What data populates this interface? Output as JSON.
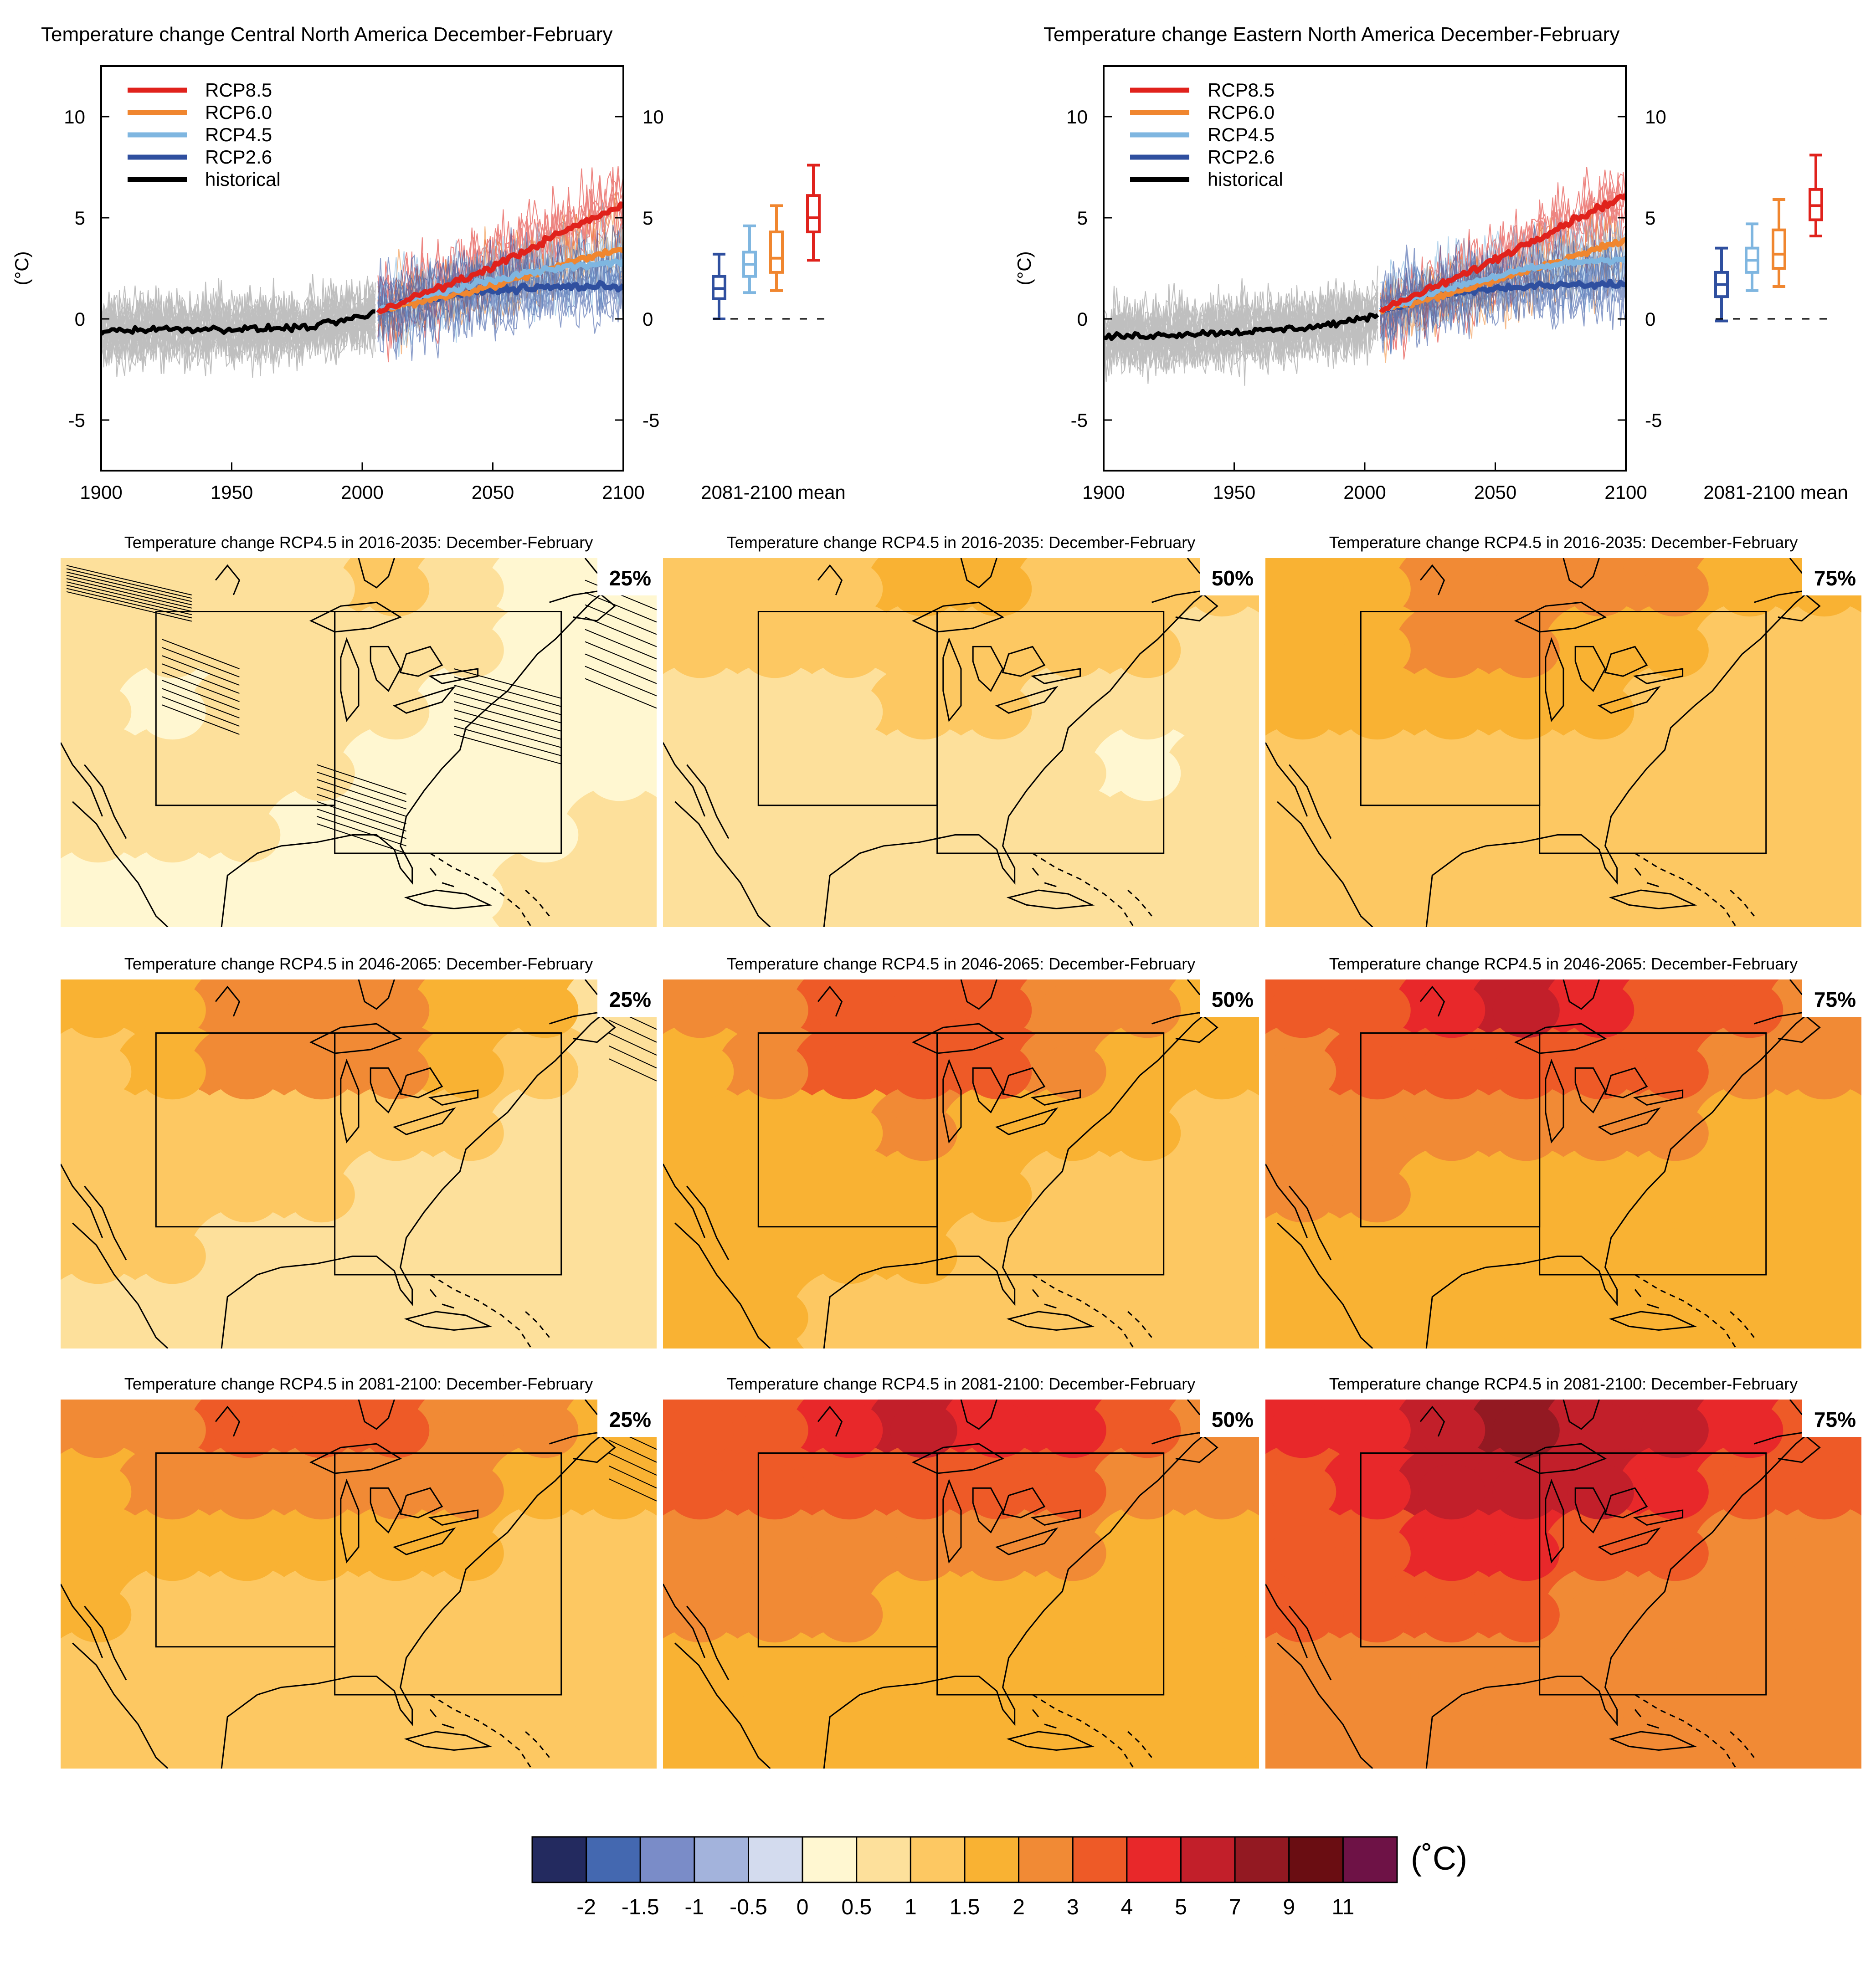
{
  "colors": {
    "rcp85": "#e0221c",
    "rcp60": "#f0862f",
    "rcp45": "#7fb6e0",
    "rcp26": "#2f4f9f",
    "historical": "#000000",
    "ensemble_gray": "#8c8c8c"
  },
  "chart_data": [
    {
      "type": "line",
      "title": "Temperature change Central North America December-February",
      "ylabel": "(°C)",
      "xlim": [
        1900,
        2100
      ],
      "ylim": [
        -7.5,
        12.5
      ],
      "x_ticks": [
        1900,
        1950,
        2000,
        2050,
        2100
      ],
      "y_ticks": [
        -5,
        0,
        5,
        10
      ],
      "legend": {
        "placement": "top-left",
        "entries": [
          "RCP8.5",
          "RCP6.0",
          "RCP4.5",
          "RCP2.6",
          "historical"
        ]
      },
      "series": [
        {
          "name": "historical",
          "x": [
            1900,
            1920,
            1940,
            1960,
            1980,
            2000,
            2005
          ],
          "y": [
            -0.6,
            -0.5,
            -0.5,
            -0.5,
            -0.4,
            0.1,
            0.3
          ]
        },
        {
          "name": "RCP2.6",
          "x": [
            2006,
            2020,
            2040,
            2060,
            2080,
            2100
          ],
          "y": [
            0.4,
            0.9,
            1.3,
            1.5,
            1.6,
            1.6
          ]
        },
        {
          "name": "RCP4.5",
          "x": [
            2006,
            2020,
            2040,
            2060,
            2080,
            2100
          ],
          "y": [
            0.4,
            1.0,
            1.6,
            2.2,
            2.6,
            2.8
          ]
        },
        {
          "name": "RCP6.0",
          "x": [
            2006,
            2020,
            2040,
            2060,
            2080,
            2100
          ],
          "y": [
            0.4,
            0.8,
            1.3,
            2.0,
            2.8,
            3.5
          ]
        },
        {
          "name": "RCP8.5",
          "x": [
            2006,
            2020,
            2040,
            2060,
            2080,
            2100
          ],
          "y": [
            0.4,
            1.1,
            2.0,
            3.2,
            4.5,
            5.6
          ]
        }
      ],
      "boxplot": {
        "label": "2081-2100 mean",
        "boxes": [
          {
            "name": "RCP2.6",
            "min": 0.0,
            "q1": 1.0,
            "median": 1.5,
            "q3": 2.1,
            "max": 3.2
          },
          {
            "name": "RCP4.5",
            "min": 1.3,
            "q1": 2.1,
            "median": 2.7,
            "q3": 3.3,
            "max": 4.6
          },
          {
            "name": "RCP6.0",
            "min": 1.4,
            "q1": 2.3,
            "median": 3.0,
            "q3": 4.3,
            "max": 5.6
          },
          {
            "name": "RCP8.5",
            "min": 2.9,
            "q1": 4.3,
            "median": 5.0,
            "q3": 6.1,
            "max": 7.6
          }
        ]
      }
    },
    {
      "type": "line",
      "title": "Temperature change Eastern North America December-February",
      "ylabel": "(°C)",
      "xlim": [
        1900,
        2100
      ],
      "ylim": [
        -7.5,
        12.5
      ],
      "x_ticks": [
        1900,
        1950,
        2000,
        2050,
        2100
      ],
      "y_ticks": [
        -5,
        0,
        5,
        10
      ],
      "legend": {
        "placement": "top-left",
        "entries": [
          "RCP8.5",
          "RCP6.0",
          "RCP4.5",
          "RCP2.6",
          "historical"
        ]
      },
      "series": [
        {
          "name": "historical",
          "x": [
            1900,
            1920,
            1940,
            1960,
            1980,
            2000,
            2005
          ],
          "y": [
            -0.9,
            -0.8,
            -0.7,
            -0.6,
            -0.4,
            0.0,
            0.3
          ]
        },
        {
          "name": "RCP2.6",
          "x": [
            2006,
            2020,
            2040,
            2060,
            2080,
            2100
          ],
          "y": [
            0.4,
            1.0,
            1.4,
            1.6,
            1.7,
            1.7
          ]
        },
        {
          "name": "RCP4.5",
          "x": [
            2006,
            2020,
            2040,
            2060,
            2080,
            2100
          ],
          "y": [
            0.4,
            1.1,
            1.8,
            2.4,
            2.8,
            3.0
          ]
        },
        {
          "name": "RCP6.0",
          "x": [
            2006,
            2020,
            2040,
            2060,
            2080,
            2100
          ],
          "y": [
            0.4,
            0.9,
            1.5,
            2.3,
            3.1,
            3.9
          ]
        },
        {
          "name": "RCP8.5",
          "x": [
            2006,
            2020,
            2040,
            2060,
            2080,
            2100
          ],
          "y": [
            0.4,
            1.2,
            2.3,
            3.6,
            4.9,
            6.1
          ]
        }
      ],
      "boxplot": {
        "label": "2081-2100 mean",
        "boxes": [
          {
            "name": "RCP2.6",
            "min": -0.1,
            "q1": 1.1,
            "median": 1.7,
            "q3": 2.3,
            "max": 3.5
          },
          {
            "name": "RCP4.5",
            "min": 1.4,
            "q1": 2.3,
            "median": 2.9,
            "q3": 3.5,
            "max": 4.7
          },
          {
            "name": "RCP6.0",
            "min": 1.6,
            "q1": 2.5,
            "median": 3.2,
            "q3": 4.4,
            "max": 5.9
          },
          {
            "name": "RCP8.5",
            "min": 4.1,
            "q1": 4.9,
            "median": 5.6,
            "q3": 6.4,
            "max": 8.1
          }
        ]
      }
    },
    {
      "type": "heatmap",
      "subplots": [
        {
          "title": "Temperature change RCP4.5 in 2016-2035: December-February",
          "percentile": "25%"
        },
        {
          "title": "Temperature change RCP4.5 in 2016-2035: December-February",
          "percentile": "50%"
        },
        {
          "title": "Temperature change RCP4.5 in 2016-2035: December-February",
          "percentile": "75%"
        },
        {
          "title": "Temperature change RCP4.5 in 2046-2065: December-February",
          "percentile": "25%"
        },
        {
          "title": "Temperature change RCP4.5 in 2046-2065: December-February",
          "percentile": "50%"
        },
        {
          "title": "Temperature change RCP4.5 in 2046-2065: December-February",
          "percentile": "75%"
        },
        {
          "title": "Temperature change RCP4.5 in 2081-2100: December-February",
          "percentile": "25%"
        },
        {
          "title": "Temperature change RCP4.5 in 2081-2100: December-February",
          "percentile": "50%"
        },
        {
          "title": "Temperature change RCP4.5 in 2081-2100: December-February",
          "percentile": "75%"
        }
      ],
      "colorbar": {
        "unit": "(˚C)",
        "tick_labels": [
          "-2",
          "-1.5",
          "-1",
          "-0.5",
          "0",
          "0.5",
          "1",
          "1.5",
          "2",
          "3",
          "4",
          "5",
          "7",
          "9",
          "11"
        ],
        "colors": [
          "#232a5f",
          "#4468b0",
          "#7a8cc8",
          "#a3b3dc",
          "#d3dbee",
          "#fff7d1",
          "#fde09b",
          "#fdc862",
          "#f9b233",
          "#f18a35",
          "#ee5a27",
          "#e8282a",
          "#c21f2a",
          "#931922",
          "#6a0d12",
          "#6e1246"
        ]
      },
      "panel_levels": [
        [
          [
            6,
            6,
            6,
            6,
            7,
            6,
            5,
            5
          ],
          [
            6,
            6,
            6,
            6,
            6,
            6,
            5,
            5
          ],
          [
            6,
            5,
            6,
            6,
            6,
            5,
            5,
            5
          ],
          [
            6,
            6,
            6,
            6,
            5,
            5,
            5,
            5
          ],
          [
            6,
            6,
            6,
            5,
            5,
            5,
            5,
            6
          ],
          [
            5,
            5,
            5,
            5,
            5,
            5,
            6,
            6
          ]
        ],
        [
          [
            7,
            7,
            7,
            8,
            8,
            7,
            7,
            7
          ],
          [
            7,
            7,
            7,
            7,
            7,
            7,
            7,
            6
          ],
          [
            6,
            6,
            6,
            7,
            7,
            6,
            6,
            6
          ],
          [
            6,
            6,
            6,
            6,
            6,
            6,
            5,
            6
          ],
          [
            6,
            6,
            6,
            6,
            6,
            6,
            6,
            6
          ],
          [
            6,
            6,
            6,
            6,
            6,
            6,
            6,
            6
          ]
        ],
        [
          [
            8,
            8,
            9,
            9,
            9,
            9,
            8,
            8
          ],
          [
            8,
            8,
            9,
            9,
            8,
            8,
            7,
            7
          ],
          [
            8,
            8,
            8,
            8,
            8,
            7,
            7,
            7
          ],
          [
            7,
            7,
            7,
            7,
            7,
            7,
            7,
            7
          ],
          [
            7,
            7,
            7,
            7,
            7,
            7,
            7,
            7
          ],
          [
            7,
            7,
            7,
            7,
            7,
            7,
            7,
            7
          ]
        ],
        [
          [
            8,
            8,
            9,
            9,
            9,
            8,
            8,
            6
          ],
          [
            7,
            8,
            9,
            9,
            9,
            8,
            7,
            6
          ],
          [
            7,
            7,
            7,
            7,
            7,
            7,
            6,
            6
          ],
          [
            7,
            7,
            7,
            7,
            6,
            6,
            6,
            6
          ],
          [
            7,
            7,
            6,
            6,
            6,
            6,
            6,
            6
          ],
          [
            6,
            6,
            6,
            6,
            6,
            6,
            6,
            6
          ]
        ],
        [
          [
            9,
            9,
            10,
            10,
            10,
            9,
            9,
            8
          ],
          [
            8,
            9,
            10,
            10,
            10,
            9,
            8,
            8
          ],
          [
            8,
            8,
            8,
            9,
            8,
            8,
            8,
            7
          ],
          [
            8,
            8,
            8,
            8,
            8,
            7,
            7,
            7
          ],
          [
            8,
            8,
            8,
            8,
            7,
            7,
            7,
            7
          ],
          [
            8,
            8,
            7,
            7,
            7,
            7,
            7,
            7
          ]
        ],
        [
          [
            10,
            10,
            11,
            12,
            11,
            10,
            10,
            9
          ],
          [
            9,
            10,
            10,
            10,
            10,
            10,
            9,
            9
          ],
          [
            9,
            9,
            9,
            9,
            9,
            9,
            8,
            8
          ],
          [
            9,
            9,
            8,
            8,
            8,
            8,
            8,
            8
          ],
          [
            8,
            8,
            8,
            8,
            8,
            8,
            8,
            8
          ],
          [
            8,
            8,
            8,
            8,
            8,
            8,
            8,
            8
          ]
        ],
        [
          [
            9,
            9,
            10,
            10,
            10,
            9,
            9,
            8
          ],
          [
            8,
            9,
            9,
            9,
            9,
            9,
            8,
            8
          ],
          [
            8,
            8,
            8,
            8,
            8,
            8,
            7,
            7
          ],
          [
            8,
            7,
            7,
            7,
            7,
            7,
            7,
            7
          ],
          [
            7,
            7,
            7,
            7,
            7,
            7,
            7,
            7
          ],
          [
            7,
            7,
            7,
            7,
            7,
            7,
            7,
            7
          ]
        ],
        [
          [
            10,
            10,
            11,
            12,
            11,
            11,
            10,
            9
          ],
          [
            10,
            10,
            10,
            10,
            10,
            10,
            9,
            9
          ],
          [
            9,
            9,
            9,
            9,
            9,
            9,
            8,
            8
          ],
          [
            9,
            9,
            9,
            8,
            8,
            8,
            8,
            8
          ],
          [
            8,
            8,
            8,
            8,
            8,
            8,
            8,
            8
          ],
          [
            8,
            8,
            8,
            8,
            8,
            8,
            8,
            8
          ]
        ],
        [
          [
            11,
            11,
            12,
            13,
            12,
            12,
            11,
            10
          ],
          [
            10,
            11,
            12,
            12,
            12,
            11,
            10,
            10
          ],
          [
            10,
            10,
            11,
            11,
            10,
            10,
            9,
            9
          ],
          [
            10,
            10,
            10,
            10,
            9,
            9,
            9,
            9
          ],
          [
            9,
            9,
            9,
            9,
            9,
            9,
            9,
            9
          ],
          [
            9,
            9,
            9,
            9,
            9,
            9,
            9,
            9
          ]
        ]
      ]
    }
  ],
  "boxplot_axis_label": "2081-2100 mean"
}
